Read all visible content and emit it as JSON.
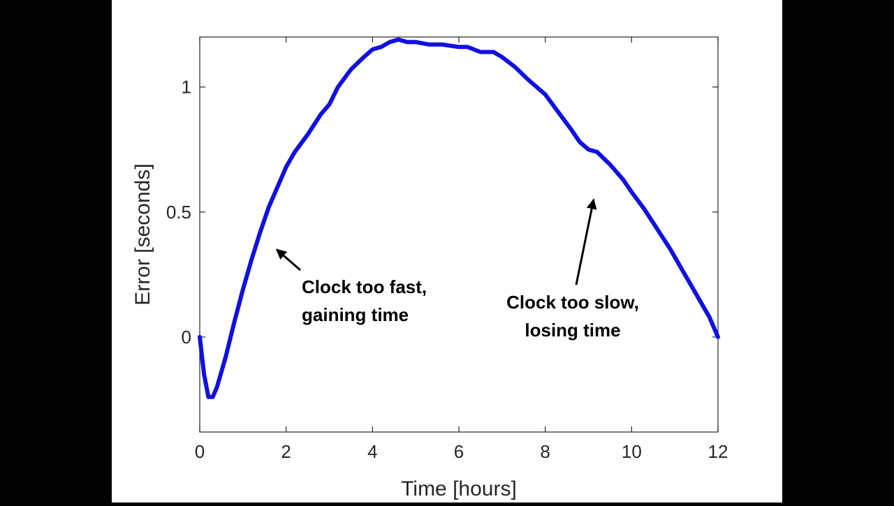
{
  "colors": {
    "background": "#000000",
    "figure": "#ffffff",
    "series": "#1010e0",
    "axis": "#262626",
    "annotation": "#000000"
  },
  "chart_data": {
    "type": "line",
    "title": "",
    "xlabel": "Time [hours]",
    "ylabel": "Error [seconds]",
    "xlim": [
      0,
      12
    ],
    "ylim": [
      -0.38,
      1.2
    ],
    "xticks": [
      0,
      2,
      4,
      6,
      8,
      10,
      12
    ],
    "yticks": [
      0,
      0.5,
      1
    ],
    "xtick_labels": [
      "0",
      "2",
      "4",
      "6",
      "8",
      "10",
      "12"
    ],
    "ytick_labels": [
      "0",
      "0.5",
      "1"
    ],
    "grid": false,
    "legend": "none",
    "series": [
      {
        "x": [
          0,
          0.1,
          0.2,
          0.3,
          0.4,
          0.5,
          0.6,
          0.8,
          1.0,
          1.2,
          1.4,
          1.6,
          1.8,
          2.0,
          2.2,
          2.5,
          2.8,
          3.0,
          3.2,
          3.5,
          3.8,
          4.0,
          4.2,
          4.4,
          4.6,
          4.8,
          5.0,
          5.3,
          5.6,
          6.0,
          6.2,
          6.5,
          6.8,
          7.0,
          7.3,
          7.6,
          8.0,
          8.3,
          8.6,
          8.8,
          9.0,
          9.2,
          9.5,
          9.8,
          10.0,
          10.3,
          10.6,
          10.9,
          11.2,
          11.5,
          11.8,
          11.9,
          12.0
        ],
        "y": [
          0.0,
          -0.15,
          -0.24,
          -0.24,
          -0.2,
          -0.14,
          -0.08,
          0.06,
          0.19,
          0.31,
          0.42,
          0.52,
          0.6,
          0.68,
          0.74,
          0.81,
          0.89,
          0.93,
          1.0,
          1.07,
          1.12,
          1.15,
          1.16,
          1.18,
          1.19,
          1.18,
          1.18,
          1.17,
          1.17,
          1.16,
          1.16,
          1.14,
          1.14,
          1.12,
          1.08,
          1.03,
          0.97,
          0.9,
          0.83,
          0.78,
          0.75,
          0.74,
          0.69,
          0.63,
          0.58,
          0.51,
          0.43,
          0.35,
          0.26,
          0.17,
          0.08,
          0.04,
          0.0
        ]
      }
    ],
    "annotations": [
      {
        "lines": [
          "Clock too fast,",
          "gaining time"
        ],
        "arrow_to": [
          1.78,
          0.35
        ]
      },
      {
        "lines": [
          "Clock too slow,",
          "losing time"
        ],
        "arrow_to": [
          9.12,
          0.55
        ]
      }
    ]
  }
}
